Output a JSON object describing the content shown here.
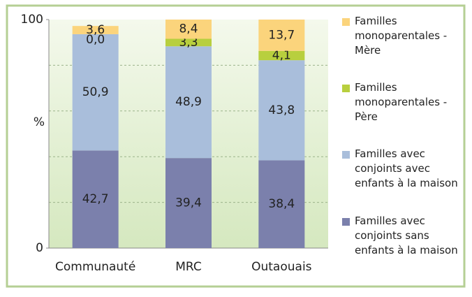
{
  "chart_data": {
    "type": "stacked_bar",
    "ylabel": "%",
    "categories": [
      "Communauté",
      "MRC",
      "Outaouais"
    ],
    "ylim": [
      0,
      100
    ],
    "yticks": [
      0,
      100
    ],
    "grid_lines": [
      20,
      40,
      60,
      80
    ],
    "series": [
      {
        "name": "Familles avec conjoints sans enfants à la maison",
        "color": "#7b80ac",
        "values": [
          42.7,
          39.4,
          38.4
        ],
        "value_labels": [
          "42,7",
          "39,4",
          "38,4"
        ]
      },
      {
        "name": "Familles avec conjoints avec enfants à la maison",
        "color": "#a9bedb",
        "values": [
          50.9,
          48.9,
          43.8
        ],
        "value_labels": [
          "50,9",
          "48,9",
          "43,8"
        ]
      },
      {
        "name": "Familles monoparentales - Père",
        "color": "#b8cf3e",
        "values": [
          0.0,
          3.3,
          4.1
        ],
        "value_labels": [
          "0,0",
          "3,3",
          "4,1"
        ]
      },
      {
        "name": "Familles monoparentales - Mère",
        "color": "#fbd47c",
        "values": [
          3.6,
          8.4,
          13.7
        ],
        "value_labels": [
          "3,6",
          "8,4",
          "13,7"
        ]
      }
    ]
  }
}
